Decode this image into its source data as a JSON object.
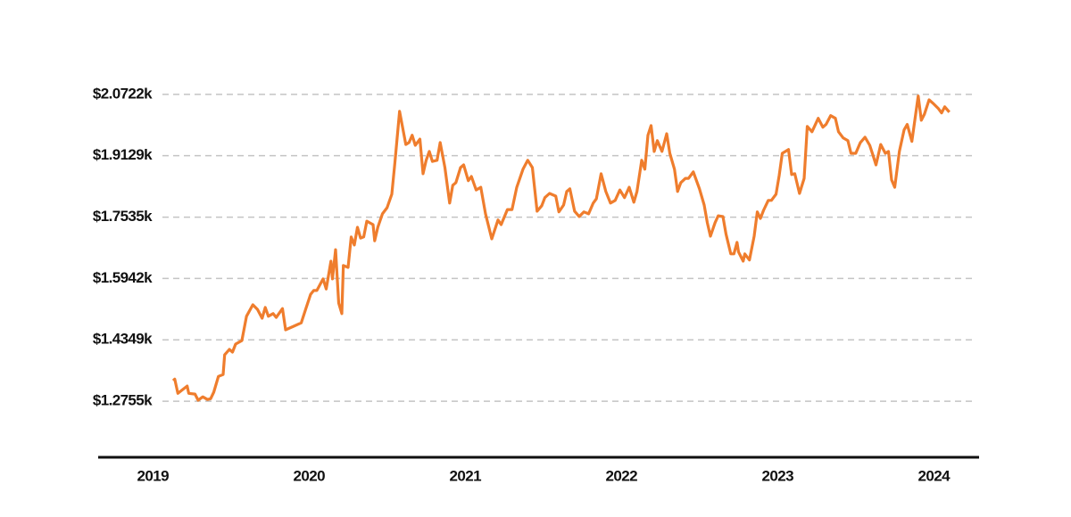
{
  "chart_data": {
    "type": "line",
    "color": "#ef7d2d",
    "grid": true,
    "xlim": [
      2018.65,
      2024.29
    ],
    "xticks": [
      2019,
      2020,
      2021,
      2022,
      2023,
      2024
    ],
    "ylim": [
      1130,
      2132
    ],
    "yticks": [
      {
        "value": 1275.5,
        "label": "$1.2755k"
      },
      {
        "value": 1434.9,
        "label": "$1.4349k"
      },
      {
        "value": 1594.2,
        "label": "$1.5942k"
      },
      {
        "value": 1753.5,
        "label": "$1.7535k"
      },
      {
        "value": 1912.9,
        "label": "$1.9129k"
      },
      {
        "value": 2072.2,
        "label": "$2.0722k"
      }
    ],
    "x": [
      2019.13,
      2019.14,
      2019.16,
      2019.22,
      2019.23,
      2019.27,
      2019.29,
      2019.32,
      2019.35,
      2019.37,
      2019.39,
      2019.42,
      2019.45,
      2019.46,
      2019.49,
      2019.51,
      2019.53,
      2019.57,
      2019.6,
      2019.64,
      2019.67,
      2019.7,
      2019.72,
      2019.74,
      2019.77,
      2019.79,
      2019.83,
      2019.85,
      2019.9,
      2019.95,
      2019.98,
      2020.01,
      2020.03,
      2020.05,
      2020.09,
      2020.11,
      2020.14,
      2020.15,
      2020.17,
      2020.19,
      2020.21,
      2020.22,
      2020.25,
      2020.27,
      2020.29,
      2020.31,
      2020.33,
      2020.35,
      2020.37,
      2020.41,
      2020.42,
      2020.44,
      2020.47,
      2020.5,
      2020.53,
      2020.55,
      2020.58,
      2020.62,
      2020.64,
      2020.66,
      2020.68,
      2020.71,
      2020.73,
      2020.75,
      2020.77,
      2020.79,
      2020.82,
      2020.84,
      2020.87,
      2020.9,
      2020.92,
      2020.94,
      2020.97,
      2020.99,
      2021.02,
      2021.04,
      2021.07,
      2021.1,
      2021.13,
      2021.17,
      2021.21,
      2021.23,
      2021.27,
      2021.3,
      2021.33,
      2021.37,
      2021.4,
      2021.43,
      2021.46,
      2021.49,
      2021.51,
      2021.54,
      2021.58,
      2021.6,
      2021.63,
      2021.65,
      2021.67,
      2021.7,
      2021.73,
      2021.76,
      2021.79,
      2021.82,
      2021.84,
      2021.87,
      2021.9,
      2021.93,
      2021.96,
      2021.99,
      2022.02,
      2022.05,
      2022.08,
      2022.1,
      2022.13,
      2022.15,
      2022.17,
      2022.19,
      2022.21,
      2022.23,
      2022.26,
      2022.29,
      2022.31,
      2022.34,
      2022.36,
      2022.38,
      2022.41,
      2022.43,
      2022.46,
      2022.5,
      2022.53,
      2022.55,
      2022.57,
      2022.6,
      2022.62,
      2022.65,
      2022.67,
      2022.7,
      2022.72,
      2022.74,
      2022.75,
      2022.78,
      2022.79,
      2022.82,
      2022.85,
      2022.87,
      2022.89,
      2022.91,
      2022.94,
      2022.96,
      2022.99,
      2023.01,
      2023.03,
      2023.07,
      2023.09,
      2023.11,
      2023.14,
      2023.17,
      2023.19,
      2023.22,
      2023.26,
      2023.29,
      2023.31,
      2023.34,
      2023.37,
      2023.39,
      2023.42,
      2023.45,
      2023.47,
      2023.5,
      2023.53,
      2023.56,
      2023.59,
      2023.61,
      2023.63,
      2023.66,
      2023.69,
      2023.71,
      2023.73,
      2023.75,
      2023.78,
      2023.81,
      2023.83,
      2023.86,
      2023.9,
      2023.92,
      2023.94,
      2023.97,
      2024.0,
      2024.03,
      2024.05,
      2024.07,
      2024.1
    ],
    "values": [
      1329,
      1333,
      1296,
      1315,
      1296,
      1294,
      1278,
      1287,
      1280,
      1282,
      1299,
      1340,
      1345,
      1396,
      1410,
      1403,
      1424,
      1433,
      1496,
      1526,
      1514,
      1491,
      1519,
      1496,
      1503,
      1493,
      1516,
      1461,
      1470,
      1479,
      1516,
      1553,
      1563,
      1563,
      1593,
      1567,
      1639,
      1593,
      1669,
      1530,
      1503,
      1628,
      1623,
      1702,
      1681,
      1727,
      1699,
      1702,
      1743,
      1734,
      1692,
      1727,
      1762,
      1778,
      1813,
      1896,
      2028,
      1942,
      1947,
      1966,
      1940,
      1956,
      1866,
      1901,
      1924,
      1898,
      1901,
      1947,
      1882,
      1790,
      1836,
      1843,
      1882,
      1889,
      1848,
      1859,
      1824,
      1831,
      1762,
      1697,
      1746,
      1734,
      1773,
      1773,
      1831,
      1878,
      1901,
      1882,
      1769,
      1783,
      1804,
      1815,
      1808,
      1767,
      1785,
      1820,
      1827,
      1769,
      1755,
      1767,
      1762,
      1790,
      1801,
      1866,
      1820,
      1790,
      1797,
      1824,
      1804,
      1831,
      1792,
      1820,
      1901,
      1878,
      1966,
      1991,
      1924,
      1952,
      1924,
      1970,
      1919,
      1878,
      1820,
      1843,
      1854,
      1854,
      1871,
      1827,
      1785,
      1739,
      1704,
      1739,
      1757,
      1755,
      1709,
      1658,
      1658,
      1688,
      1663,
      1639,
      1658,
      1642,
      1704,
      1767,
      1750,
      1771,
      1797,
      1797,
      1813,
      1861,
      1919,
      1929,
      1864,
      1866,
      1815,
      1854,
      1989,
      1975,
      2010,
      1987,
      1994,
      2017,
      2010,
      1975,
      1959,
      1952,
      1919,
      1919,
      1947,
      1961,
      1940,
      1915,
      1889,
      1942,
      1919,
      1924,
      1850,
      1831,
      1924,
      1980,
      1994,
      1950,
      2068,
      2005,
      2021,
      2058,
      2047,
      2035,
      2024,
      2040,
      2026
    ]
  }
}
